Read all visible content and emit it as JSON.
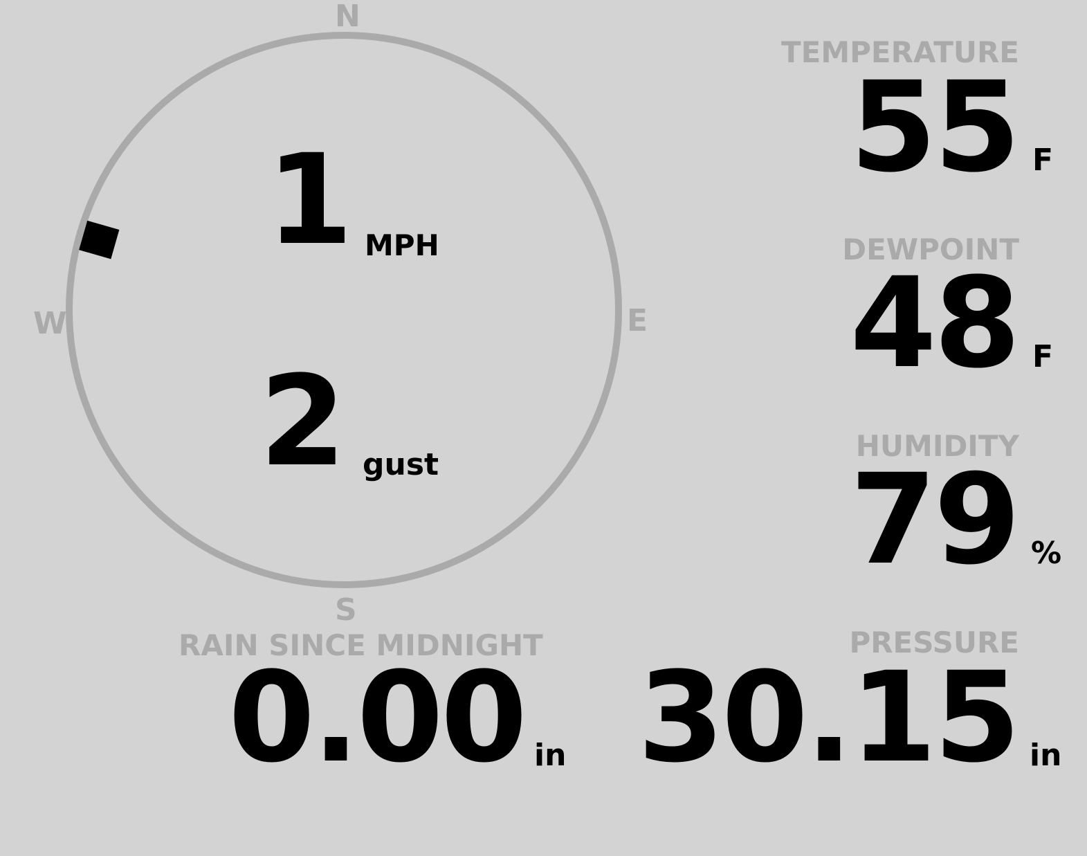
{
  "compass": {
    "north": "N",
    "south": "S",
    "east": "E",
    "west": "W",
    "wind_direction_deg": 286,
    "ring_color": "#aaaaaa",
    "marker_color": "#000000"
  },
  "wind": {
    "speed": "1",
    "speed_unit": "MPH",
    "gust": "2",
    "gust_label": "gust"
  },
  "temperature": {
    "label": "TEMPERATURE",
    "value": "55",
    "unit": "F"
  },
  "dewpoint": {
    "label": "DEWPOINT",
    "value": "48",
    "unit": "F"
  },
  "humidity": {
    "label": "HUMIDITY",
    "value": "79",
    "unit": "%"
  },
  "rain": {
    "label": "RAIN SINCE MIDNIGHT",
    "value": "0.00",
    "unit": "in"
  },
  "pressure": {
    "label": "PRESSURE",
    "value": "30.15",
    "unit": "in"
  },
  "colors": {
    "background": "#d3d3d3",
    "label": "#aaaaaa",
    "value": "#000000"
  }
}
